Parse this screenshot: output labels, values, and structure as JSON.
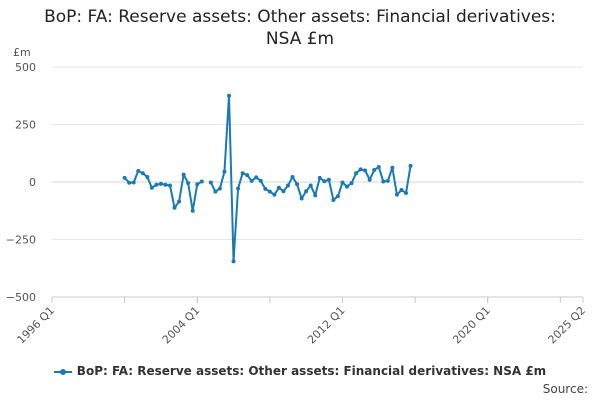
{
  "chart_data": {
    "type": "line",
    "title": "BoP: FA: Reserve assets: Other assets: Financial derivatives: NSA £m",
    "title_lines": [
      "BoP: FA: Reserve assets: Other assets: Financial derivatives:",
      "NSA £m"
    ],
    "ylabel": "£m",
    "xlabel": "",
    "ylim": [
      -500,
      500
    ],
    "yticks": [
      500,
      250,
      0,
      -250,
      -500
    ],
    "ytick_labels": [
      "500",
      "250",
      "0",
      "−250",
      "−500"
    ],
    "xlim": [
      "1996 Q1",
      "2025 Q2"
    ],
    "xticks": [
      "1996 Q1",
      "2004 Q1",
      "2012 Q1",
      "2020 Q1",
      "2025 Q2"
    ],
    "grid": true,
    "legend_position": "bottom",
    "series": [
      {
        "name": "BoP: FA: Reserve assets: Other assets: Financial derivatives: NSA £m",
        "color": "#1a7ab5",
        "points": [
          {
            "x": "2000 Q1",
            "y": 18
          },
          {
            "x": "2000 Q2",
            "y": -3
          },
          {
            "x": "2000 Q3",
            "y": -2
          },
          {
            "x": "2000 Q4",
            "y": 48
          },
          {
            "x": "2001 Q1",
            "y": 38
          },
          {
            "x": "2001 Q2",
            "y": 22
          },
          {
            "x": "2001 Q3",
            "y": -25
          },
          {
            "x": "2001 Q4",
            "y": -12
          },
          {
            "x": "2002 Q1",
            "y": -8
          },
          {
            "x": "2002 Q2",
            "y": -12
          },
          {
            "x": "2002 Q3",
            "y": -15
          },
          {
            "x": "2002 Q4",
            "y": -112
          },
          {
            "x": "2003 Q1",
            "y": -85
          },
          {
            "x": "2003 Q2",
            "y": 32
          },
          {
            "x": "2003 Q3",
            "y": -5
          },
          {
            "x": "2003 Q4",
            "y": -125
          },
          {
            "x": "2004 Q1",
            "y": -10
          },
          {
            "x": "2004 Q2",
            "y": 2
          },
          {
            "x": "2004 Q3",
            "y": null
          },
          {
            "x": "2004 Q4",
            "y": -2
          },
          {
            "x": "2005 Q1",
            "y": -42
          },
          {
            "x": "2005 Q2",
            "y": -28
          },
          {
            "x": "2005 Q3",
            "y": 45
          },
          {
            "x": "2005 Q4",
            "y": 375
          },
          {
            "x": "2006 Q1",
            "y": -345
          },
          {
            "x": "2006 Q2",
            "y": -28
          },
          {
            "x": "2006 Q3",
            "y": 38
          },
          {
            "x": "2006 Q4",
            "y": 30
          },
          {
            "x": "2007 Q1",
            "y": 5
          },
          {
            "x": "2007 Q2",
            "y": 20
          },
          {
            "x": "2007 Q3",
            "y": 5
          },
          {
            "x": "2007 Q4",
            "y": -30
          },
          {
            "x": "2008 Q1",
            "y": -42
          },
          {
            "x": "2008 Q2",
            "y": -55
          },
          {
            "x": "2008 Q3",
            "y": -25
          },
          {
            "x": "2008 Q4",
            "y": -40
          },
          {
            "x": "2009 Q1",
            "y": -15
          },
          {
            "x": "2009 Q2",
            "y": 22
          },
          {
            "x": "2009 Q3",
            "y": -10
          },
          {
            "x": "2009 Q4",
            "y": -72
          },
          {
            "x": "2010 Q1",
            "y": -40
          },
          {
            "x": "2010 Q2",
            "y": -15
          },
          {
            "x": "2010 Q3",
            "y": -58
          },
          {
            "x": "2010 Q4",
            "y": 18
          },
          {
            "x": "2011 Q1",
            "y": 3
          },
          {
            "x": "2011 Q2",
            "y": 10
          },
          {
            "x": "2011 Q3",
            "y": -78
          },
          {
            "x": "2011 Q4",
            "y": -62
          },
          {
            "x": "2012 Q1",
            "y": -2
          },
          {
            "x": "2012 Q2",
            "y": -20
          },
          {
            "x": "2012 Q3",
            "y": -5
          },
          {
            "x": "2012 Q4",
            "y": 38
          },
          {
            "x": "2013 Q1",
            "y": 55
          },
          {
            "x": "2013 Q2",
            "y": 50
          },
          {
            "x": "2013 Q3",
            "y": 10
          },
          {
            "x": "2013 Q4",
            "y": 52
          },
          {
            "x": "2014 Q1",
            "y": 65
          },
          {
            "x": "2014 Q2",
            "y": 2
          },
          {
            "x": "2014 Q3",
            "y": 5
          },
          {
            "x": "2014 Q4",
            "y": 62
          },
          {
            "x": "2015 Q1",
            "y": -55
          },
          {
            "x": "2015 Q2",
            "y": -35
          },
          {
            "x": "2015 Q3",
            "y": -48
          },
          {
            "x": "2015 Q4",
            "y": 70
          }
        ]
      }
    ]
  },
  "source_label": "Source:"
}
